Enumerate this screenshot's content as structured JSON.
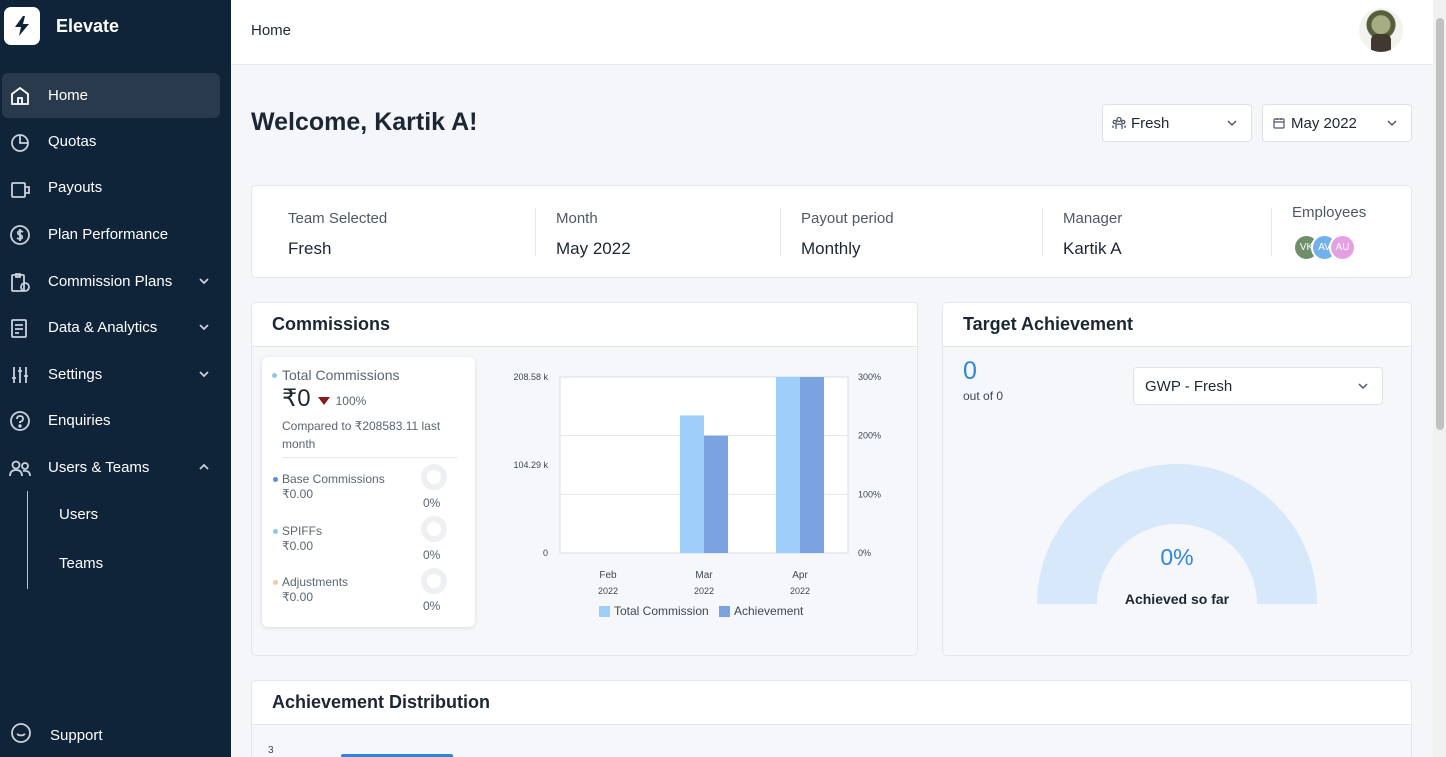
{
  "app": {
    "name": "Elevate"
  },
  "sidebar": {
    "items": [
      {
        "label": "Home",
        "icon": "home-icon"
      },
      {
        "label": "Quotas",
        "icon": "pie-chart-icon"
      },
      {
        "label": "Payouts",
        "icon": "wallet-icon"
      },
      {
        "label": "Plan Performance",
        "icon": "dollar-circle-icon"
      },
      {
        "label": "Commission Plans",
        "icon": "clipboard-icon"
      },
      {
        "label": "Data & Analytics",
        "icon": "report-icon"
      },
      {
        "label": "Settings",
        "icon": "sliders-icon"
      },
      {
        "label": "Enquiries",
        "icon": "question-icon"
      },
      {
        "label": "Users & Teams",
        "icon": "users-icon"
      }
    ],
    "sub_items": [
      "Users",
      "Teams"
    ],
    "support": "Support",
    "active": "Home"
  },
  "header": {
    "breadcrumb": "Home"
  },
  "welcome": "Welcome, Kartik A!",
  "filters": {
    "team": "Fresh",
    "month": "May 2022"
  },
  "info": {
    "team_label": "Team Selected",
    "team_value": "Fresh",
    "month_label": "Month",
    "month_value": "May 2022",
    "payout_label": "Payout period",
    "payout_value": "Monthly",
    "manager_label": "Manager",
    "manager_value": "Kartik A",
    "employees_label": "Employees",
    "employees": [
      {
        "initials": "VK",
        "color": "#6f8f6a"
      },
      {
        "initials": "AV",
        "color": "#6fb1e8"
      },
      {
        "initials": "AU",
        "color": "#e5a0e3"
      }
    ]
  },
  "commissions": {
    "title": "Commissions",
    "total_label": "Total Commissions",
    "total_value": "₹0",
    "change_pct": "100%",
    "compared": "Compared to ₹208583.11 last month",
    "breakdown": [
      {
        "label": "Base Commissions",
        "value": "₹0.00",
        "pct": "0%",
        "color": "#5b8fd6"
      },
      {
        "label": "SPIFFs",
        "value": "₹0.00",
        "pct": "0%",
        "color": "#8cc7f2"
      },
      {
        "label": "Adjustments",
        "value": "₹0.00",
        "pct": "0%",
        "color": "#f5c99c"
      }
    ]
  },
  "chart_data": {
    "type": "bar",
    "categories": [
      "Feb 2022",
      "Mar 2022",
      "Apr 2022"
    ],
    "series": [
      {
        "name": "Total Commission",
        "values": [
          0,
          163000,
          208583.11
        ],
        "color": "#9dcffa",
        "axis": "left"
      },
      {
        "name": "Achievement",
        "values": [
          0,
          200,
          300
        ],
        "color": "#7ba3e0",
        "axis": "right"
      }
    ],
    "y_ticks": [
      "208.58 k",
      "104.29 k",
      "0"
    ],
    "y2_ticks": [
      "300%",
      "200%",
      "100%",
      "0%"
    ],
    "ylim": [
      0,
      208583.11
    ],
    "y2lim": [
      0,
      300
    ],
    "x_ticks": [
      [
        "Feb",
        "2022"
      ],
      [
        "Mar",
        "2022"
      ],
      [
        "Apr",
        "2022"
      ]
    ],
    "legend": [
      "Total Commission",
      "Achievement"
    ],
    "grid": true
  },
  "target": {
    "title": "Target Achievement",
    "value": "0",
    "out_of": "out of 0",
    "select": "GWP - Fresh",
    "pct": "0%",
    "caption": "Achieved so far"
  },
  "distribution": {
    "title": "Achievement Distribution",
    "tick": "3"
  },
  "colors": {
    "sidebar": "#0f2339",
    "accent": "#2e86de",
    "down_arrow": "#8b1a1a"
  }
}
